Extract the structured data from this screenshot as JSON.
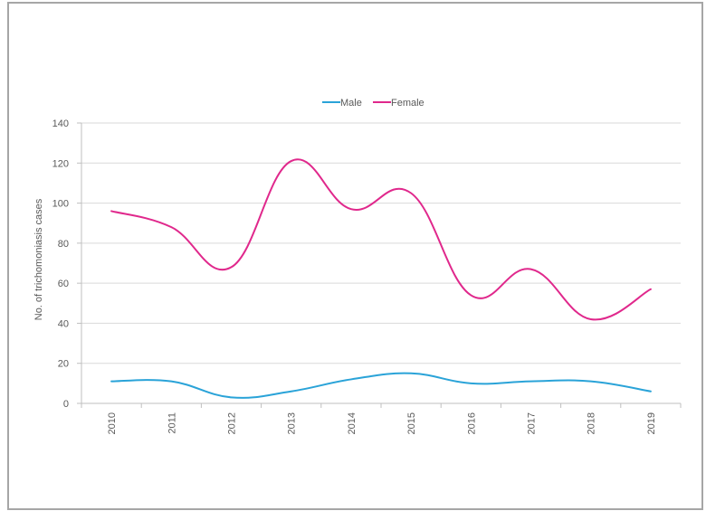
{
  "chart_data": {
    "type": "line",
    "title": "",
    "xlabel": "",
    "ylabel": "No. of trichomoniasis cases",
    "categories": [
      "2010",
      "2011",
      "2012",
      "2013",
      "2014",
      "2015",
      "2016",
      "2017",
      "2018",
      "2019"
    ],
    "ylim": [
      0,
      140
    ],
    "yticks": [
      0,
      20,
      40,
      60,
      80,
      100,
      120,
      140
    ],
    "grid": true,
    "legend_position": "top-center",
    "smooth": true,
    "series": [
      {
        "name": "Male",
        "color": "#2aa3d8",
        "values": [
          11,
          11,
          3,
          6,
          12,
          15,
          10,
          11,
          11,
          6
        ]
      },
      {
        "name": "Female",
        "color": "#e0288c",
        "values": [
          96,
          88,
          68,
          121,
          97,
          105,
          54,
          67,
          42,
          57
        ]
      }
    ]
  }
}
